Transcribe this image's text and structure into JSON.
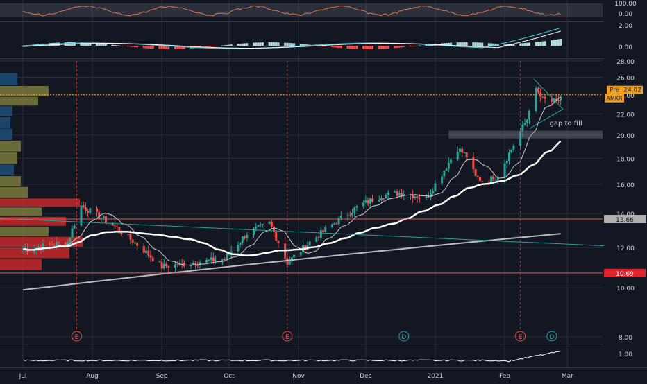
{
  "chart_data": {
    "type": "candlestick",
    "ticker": "AMKR",
    "colors": {
      "background": "#131722",
      "grid": "#2a2e39",
      "up": "#26a69a",
      "down": "#ef5350",
      "ema_fast": "#cfcfcf",
      "ema_slow": "#ffffff",
      "sma_long": "#bdbdbd",
      "rsi_line": "#e07a4f",
      "macd_line": "#4dd0e1",
      "signal_line": "#ffffff",
      "trendline": "#26a69a",
      "resistance": "#ef5350",
      "premarket": "#f0a020",
      "label_red": "#e0242c",
      "label_white": "#ffffff",
      "vp_blue": "#1f4e79",
      "vp_olive": "#7a7a3c",
      "vp_green": "#2e7d32",
      "vp_red": "#c62828"
    },
    "x_axis": {
      "labels": [
        "Jul",
        "Aug",
        "Sep",
        "Oct",
        "Nov",
        "Dec",
        "2021",
        "Feb",
        "Mar"
      ],
      "tick_days": [
        0,
        31,
        62,
        92,
        123,
        153,
        184,
        215,
        243
      ]
    },
    "price_axis": {
      "ticks": [
        "28.00",
        "26.00",
        "24.00",
        "22.00",
        "20.00",
        "18.00",
        "16.00",
        "14.00",
        "12.00",
        "10.00",
        "8.00"
      ],
      "range": [
        8,
        28
      ],
      "scale": "log"
    },
    "volume_panel": {
      "ticks": [
        "1.00"
      ]
    },
    "rsi_panel": {
      "ticks": [
        "100.00",
        "0.00"
      ]
    },
    "macd_panel": {
      "ticks": [
        "2.00",
        "0.00"
      ]
    },
    "price_labels": [
      {
        "text": "Pre",
        "value": "24.02",
        "price": 24.02,
        "type": "premarket"
      },
      {
        "text": "AMKR",
        "price": 24.02,
        "type": "premarket"
      },
      {
        "text": "13.66",
        "price": 13.66,
        "type": "level_white"
      },
      {
        "text": "10.69",
        "price": 10.69,
        "type": "level_red"
      }
    ],
    "annotations": [
      {
        "text": "gap to fill",
        "price_low": 19.7,
        "price_high": 20.4
      }
    ],
    "events": [
      {
        "label": "E",
        "day": 24,
        "kind": "earnings"
      },
      {
        "label": "E",
        "day": 118,
        "kind": "earnings"
      },
      {
        "label": "D",
        "day": 170,
        "kind": "dividend"
      },
      {
        "label": "E",
        "day": 222,
        "kind": "earnings"
      },
      {
        "label": "D",
        "day": 236,
        "kind": "dividend"
      }
    ],
    "key_closes": [
      {
        "day": 0,
        "close": 11.9
      },
      {
        "day": 20,
        "close": 12.3
      },
      {
        "day": 26,
        "close": 14.5
      },
      {
        "day": 40,
        "close": 13.3
      },
      {
        "day": 62,
        "close": 11.0
      },
      {
        "day": 90,
        "close": 11.4
      },
      {
        "day": 100,
        "close": 12.8
      },
      {
        "day": 110,
        "close": 13.4
      },
      {
        "day": 118,
        "close": 11.2
      },
      {
        "day": 130,
        "close": 12.5
      },
      {
        "day": 150,
        "close": 14.5
      },
      {
        "day": 160,
        "close": 15.2
      },
      {
        "day": 170,
        "close": 15.4
      },
      {
        "day": 180,
        "close": 15.0
      },
      {
        "day": 186,
        "close": 16.5
      },
      {
        "day": 194,
        "close": 18.8
      },
      {
        "day": 198,
        "close": 18.2
      },
      {
        "day": 202,
        "close": 16.5
      },
      {
        "day": 206,
        "close": 16.2
      },
      {
        "day": 212,
        "close": 16.6
      },
      {
        "day": 220,
        "close": 19.5
      },
      {
        "day": 225,
        "close": 21.5
      },
      {
        "day": 228,
        "close": 24.8
      },
      {
        "day": 232,
        "close": 23.5
      },
      {
        "day": 238,
        "close": 23.2
      },
      {
        "day": 240,
        "close": 23.8
      }
    ]
  }
}
